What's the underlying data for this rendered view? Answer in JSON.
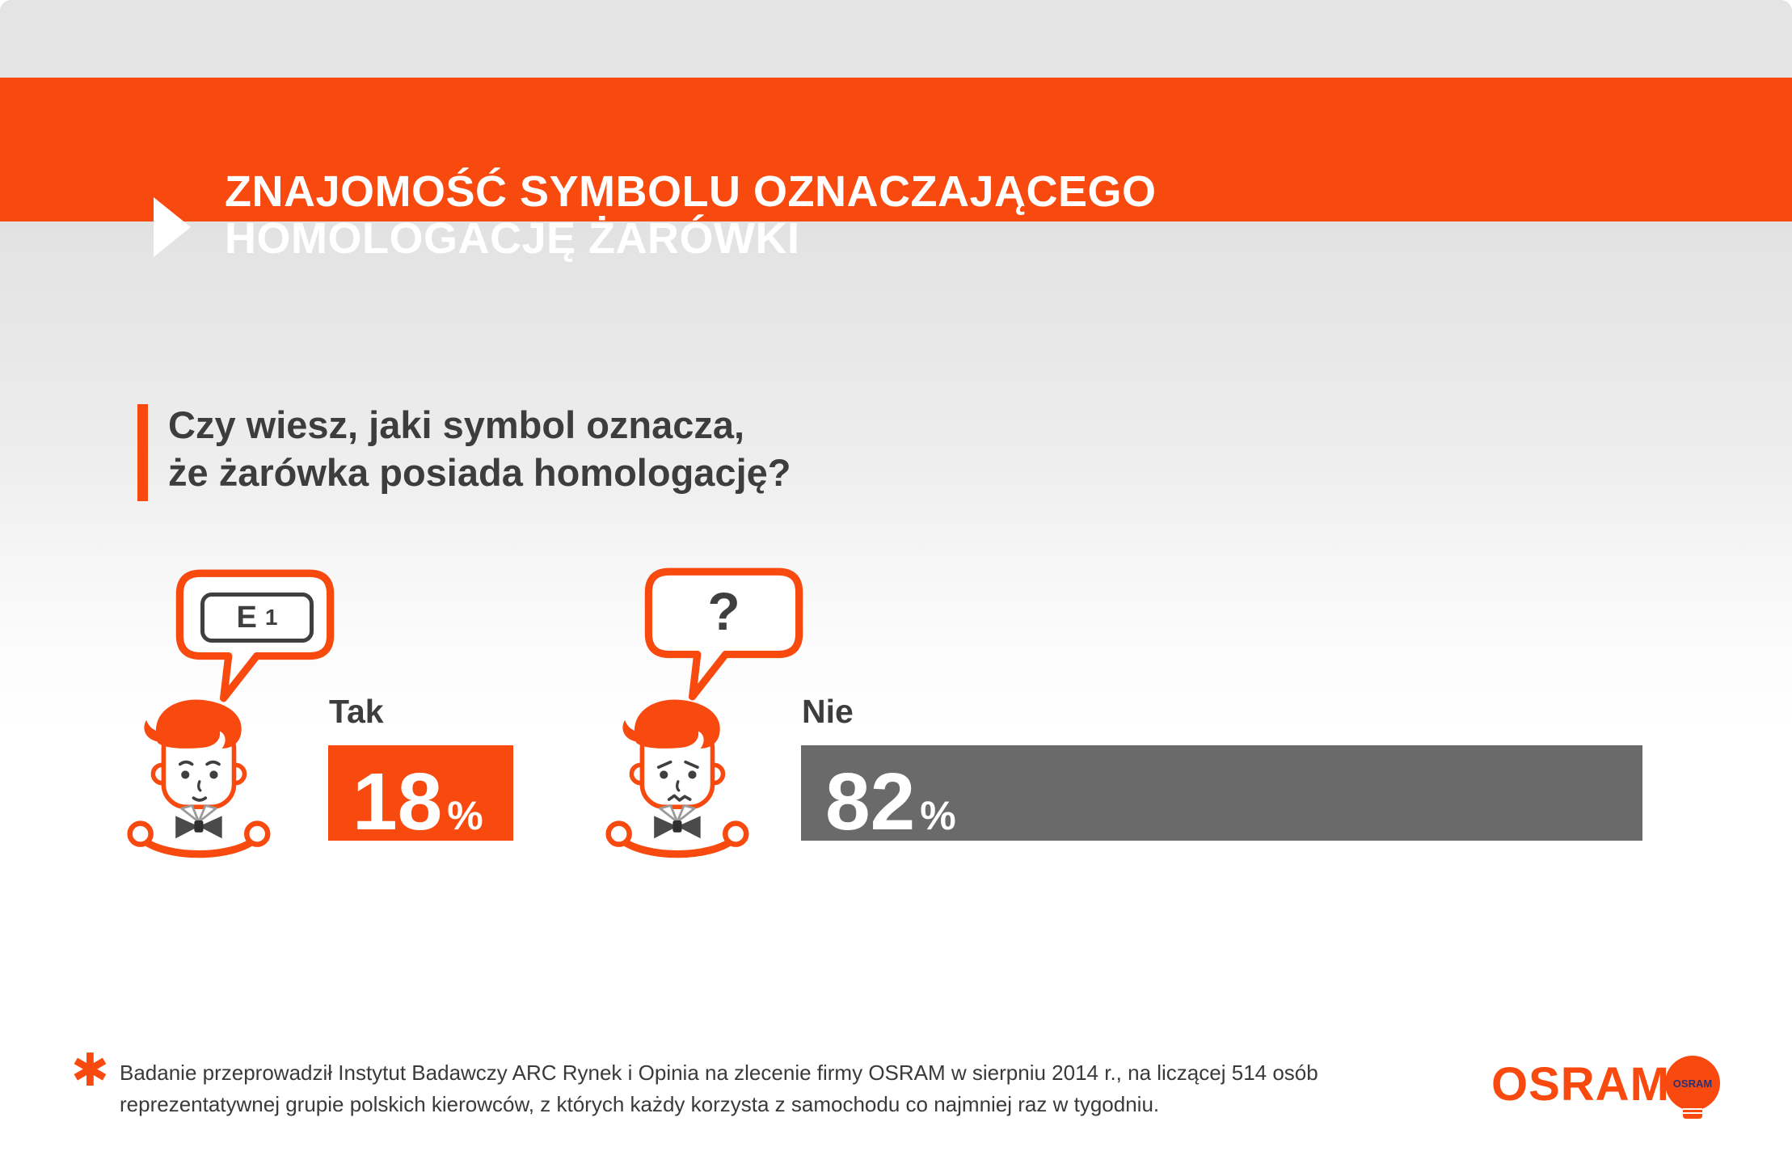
{
  "colors": {
    "orange": "#F8490F",
    "bar_gray": "#6A6A6A",
    "text_dark": "#3D3D3D",
    "band_gray": "#E4E4E4",
    "emblem_text_blue": "#23337A"
  },
  "header": {
    "title_line1": "ZNAJOMOŚĆ SYMBOLU OZNACZAJĄCEGO",
    "title_line2": "HOMOLOGACJĘ ŻARÓWKI"
  },
  "question": {
    "line1": "Czy wiesz, jaki symbol oznacza,",
    "line2": "że żarówka posiada homologację?"
  },
  "chart_data": {
    "type": "bar",
    "title": "Znajomość symbolu oznaczającego homologację żarówki",
    "question": "Czy wiesz, jaki symbol oznacza, że żarówka posiada homologację?",
    "categories": [
      "Tak",
      "Nie"
    ],
    "values": [
      18,
      82
    ],
    "unit": "%",
    "bar_colors": [
      "#F8490F",
      "#6A6A6A"
    ],
    "bubble_annotations": [
      "E 1",
      "?"
    ],
    "legend_position": "none",
    "grid": false
  },
  "answers": [
    {
      "label": "Tak",
      "value": "18",
      "unit": "%",
      "mark_e": "E",
      "mark_num": "1"
    },
    {
      "label": "Nie",
      "value": "82",
      "unit": "%",
      "bubble": "?"
    }
  ],
  "icons": {
    "play_arrow": "▶",
    "asterisk": "✱"
  },
  "footnote": {
    "asterisk": "✱",
    "line1": "Badanie przeprowadził Instytut Badawczy ARC Rynek i Opinia na zlecenie firmy OSRAM w sierpniu 2014 r., na liczącej 514 osób",
    "line2": "reprezentatywnej grupie polskich kierowców, z których każdy korzysta z samochodu co najmniej raz w tygodniu."
  },
  "brand": {
    "wordmark": "OSRAM",
    "emblem_text": "OSRAM"
  }
}
